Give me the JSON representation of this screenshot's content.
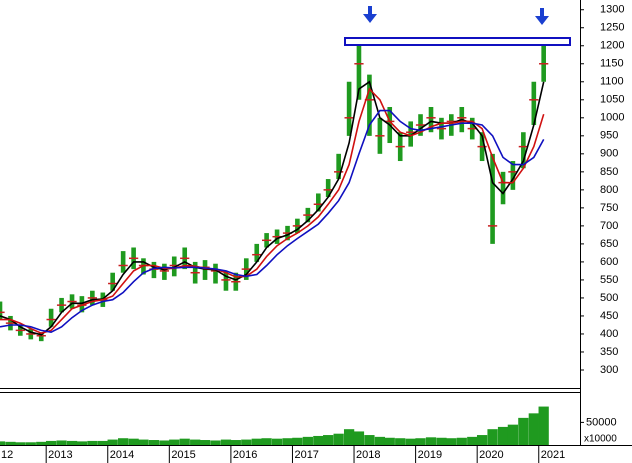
{
  "chart_data": {
    "type": "stock",
    "x": [
      2012.25,
      2012.42,
      2012.58,
      2012.75,
      2012.92,
      2013.08,
      2013.25,
      2013.42,
      2013.58,
      2013.75,
      2013.92,
      2014.08,
      2014.25,
      2014.42,
      2014.58,
      2014.75,
      2014.92,
      2015.08,
      2015.25,
      2015.42,
      2015.58,
      2015.75,
      2015.92,
      2016.08,
      2016.25,
      2016.42,
      2016.58,
      2016.75,
      2016.92,
      2017.08,
      2017.25,
      2017.42,
      2017.58,
      2017.75,
      2017.92,
      2018.08,
      2018.25,
      2018.42,
      2018.58,
      2018.75,
      2018.92,
      2019.08,
      2019.25,
      2019.42,
      2019.58,
      2019.75,
      2019.92,
      2020.08,
      2020.25,
      2020.42,
      2020.58,
      2020.75,
      2020.92,
      2021.08
    ],
    "price": {
      "color": "#1f9a1f",
      "high": [
        490,
        450,
        425,
        415,
        405,
        470,
        500,
        510,
        505,
        520,
        515,
        570,
        630,
        640,
        610,
        600,
        595,
        615,
        640,
        600,
        605,
        595,
        575,
        570,
        610,
        650,
        680,
        690,
        700,
        720,
        750,
        790,
        830,
        900,
        1100,
        1200,
        1120,
        1000,
        1030,
        960,
        990,
        1010,
        1030,
        1000,
        1010,
        1030,
        1000,
        960,
        900,
        850,
        880,
        960,
        1100,
        1200
      ],
      "low": [
        440,
        410,
        395,
        385,
        380,
        420,
        460,
        470,
        460,
        480,
        475,
        520,
        570,
        580,
        565,
        555,
        550,
        560,
        580,
        540,
        550,
        540,
        520,
        520,
        550,
        600,
        640,
        650,
        660,
        680,
        710,
        740,
        780,
        830,
        950,
        1050,
        950,
        900,
        930,
        880,
        920,
        950,
        960,
        940,
        950,
        960,
        940,
        880,
        650,
        760,
        800,
        860,
        980,
        1100
      ],
      "close": [
        460,
        430,
        410,
        400,
        395,
        440,
        480,
        490,
        480,
        500,
        495,
        540,
        590,
        610,
        590,
        580,
        575,
        590,
        610,
        570,
        585,
        575,
        550,
        545,
        580,
        620,
        660,
        670,
        680,
        700,
        730,
        760,
        800,
        850,
        1000,
        1150,
        1050,
        950,
        990,
        920,
        960,
        980,
        1000,
        970,
        990,
        1000,
        970,
        920,
        700,
        820,
        850,
        920,
        1050,
        1150
      ]
    },
    "series": [
      {
        "color": "#000000",
        "values": [
          450,
          440,
          420,
          405,
          398,
          420,
          460,
          485,
          485,
          495,
          497,
          520,
          565,
          600,
          600,
          585,
          578,
          585,
          600,
          585,
          580,
          578,
          560,
          550,
          565,
          600,
          640,
          665,
          675,
          690,
          715,
          745,
          780,
          830,
          930,
          1080,
          1100,
          1000,
          980,
          950,
          950,
          970,
          990,
          985,
          985,
          995,
          985,
          950,
          820,
          790,
          830,
          880,
          980,
          1100
        ]
      },
      {
        "color": "#d01010",
        "values": [
          440,
          440,
          430,
          415,
          402,
          410,
          440,
          470,
          480,
          490,
          495,
          505,
          540,
          575,
          590,
          590,
          582,
          582,
          590,
          588,
          582,
          580,
          570,
          558,
          560,
          580,
          615,
          645,
          665,
          680,
          700,
          725,
          760,
          800,
          870,
          990,
          1080,
          1050,
          990,
          960,
          950,
          960,
          975,
          985,
          985,
          990,
          990,
          970,
          890,
          820,
          820,
          860,
          920,
          1010
        ]
      },
      {
        "color": "#1010c0",
        "values": [
          420,
          425,
          425,
          420,
          410,
          405,
          420,
          445,
          465,
          480,
          490,
          495,
          515,
          545,
          570,
          582,
          585,
          583,
          585,
          585,
          583,
          580,
          575,
          565,
          560,
          565,
          590,
          620,
          645,
          665,
          685,
          705,
          735,
          770,
          820,
          900,
          980,
          1020,
          1020,
          990,
          970,
          965,
          970,
          975,
          980,
          985,
          985,
          980,
          950,
          890,
          870,
          870,
          890,
          940
        ]
      }
    ],
    "volume": {
      "color": "#1f9a1f",
      "values": [
        8000,
        7000,
        6000,
        6000,
        7000,
        9000,
        10000,
        9000,
        8000,
        9000,
        9000,
        12000,
        15000,
        14000,
        12000,
        11000,
        10000,
        12000,
        14000,
        12000,
        11000,
        10000,
        12000,
        11000,
        12000,
        14000,
        15000,
        14000,
        15000,
        16000,
        18000,
        20000,
        22000,
        25000,
        35000,
        30000,
        22000,
        18000,
        16000,
        15000,
        14000,
        15000,
        17000,
        16000,
        15000,
        16000,
        18000,
        22000,
        35000,
        40000,
        45000,
        60000,
        70000,
        85000
      ],
      "ylim": [
        0,
        115000
      ],
      "yticks": [
        50000
      ],
      "unit_label": "x10000"
    },
    "xlim": [
      2012.25,
      2021.67
    ],
    "xticks": [
      {
        "value": 2012,
        "label": "12"
      },
      2013,
      2014,
      2015,
      2016,
      2017,
      2018,
      2019,
      2020,
      2021
    ],
    "ylim": [
      250,
      1327
    ],
    "yticks": [
      300,
      350,
      400,
      450,
      500,
      550,
      600,
      650,
      700,
      750,
      800,
      850,
      900,
      950,
      1000,
      1050,
      1100,
      1150,
      1200,
      1250,
      1300
    ]
  }
}
